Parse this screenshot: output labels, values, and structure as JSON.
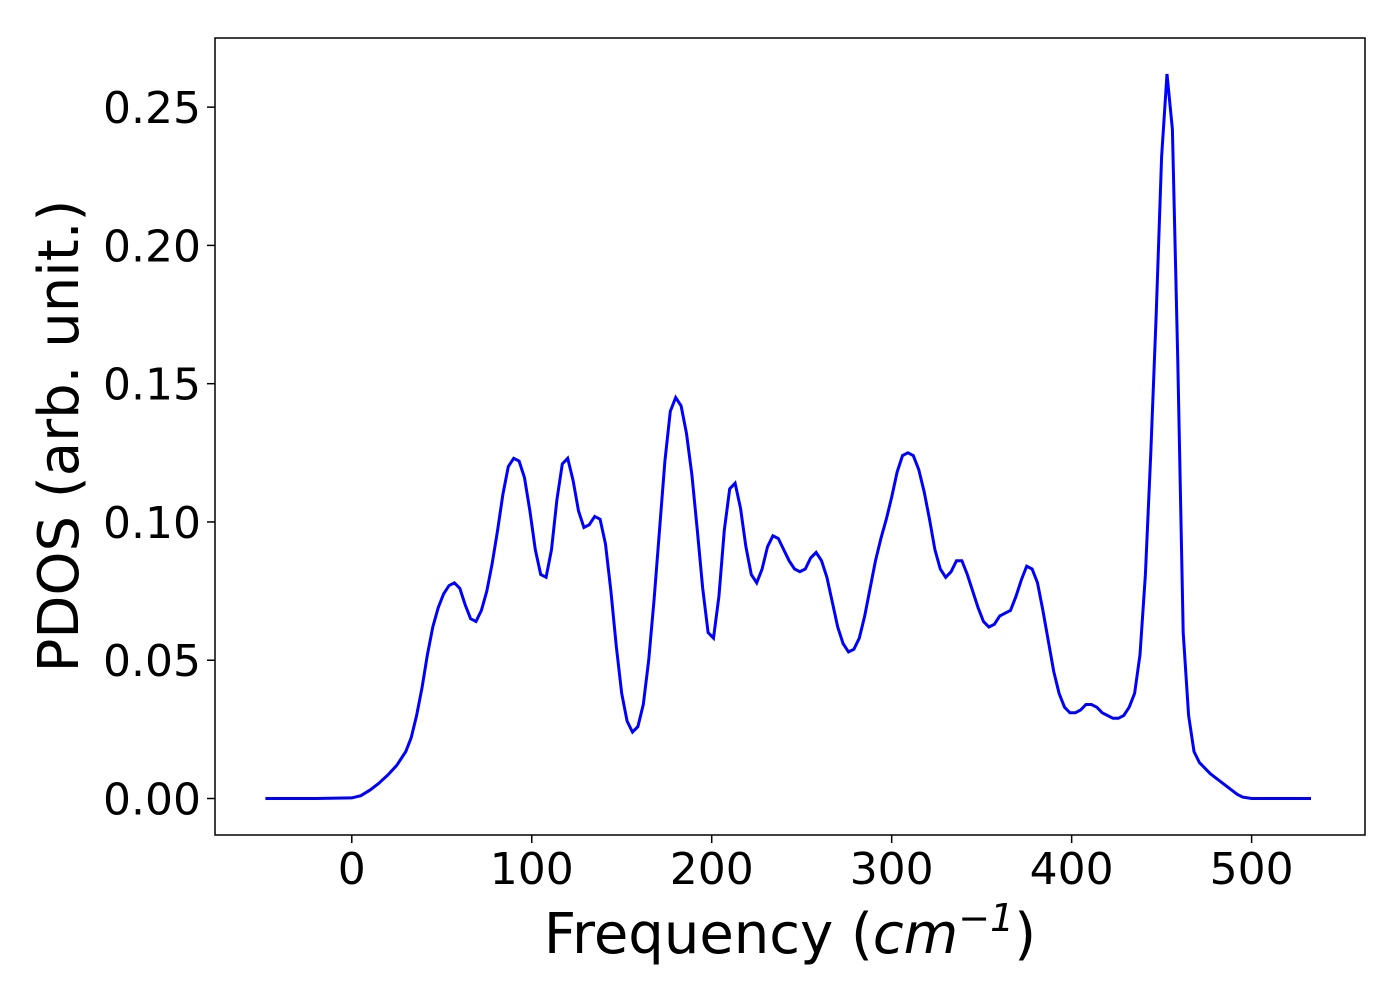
{
  "chart_data": {
    "type": "line",
    "xlabel": "Frequency (",
    "xlabel_unit": "cm",
    "xlabel_exp": "−1",
    "xlabel_close": ")",
    "ylabel": "PDOS (arb. unit.)",
    "xlim": [
      -76,
      563
    ],
    "ylim": [
      -0.0132,
      0.275
    ],
    "xticks": [
      0,
      100,
      200,
      300,
      400,
      500
    ],
    "xtick_labels": [
      "0",
      "100",
      "200",
      "300",
      "400",
      "500"
    ],
    "yticks": [
      0.0,
      0.05,
      0.1,
      0.15,
      0.2,
      0.25
    ],
    "ytick_labels": [
      "0.00",
      "0.05",
      "0.10",
      "0.15",
      "0.20",
      "0.25"
    ],
    "grid": false,
    "series": [
      {
        "color": "#0000ff",
        "x": [
          -48,
          -20,
          0,
          5,
          10,
          15,
          20,
          25,
          30,
          33,
          36,
          39,
          42,
          45,
          48,
          51,
          54,
          57,
          60,
          63,
          66,
          69,
          72,
          75,
          78,
          81,
          84,
          87,
          90,
          93,
          96,
          99,
          102,
          105,
          108,
          111,
          114,
          117,
          120,
          123,
          126,
          129,
          132,
          135,
          138,
          141,
          144,
          147,
          150,
          153,
          156,
          159,
          162,
          165,
          168,
          171,
          174,
          177,
          180,
          183,
          186,
          189,
          192,
          195,
          198,
          201,
          204,
          207,
          210,
          213,
          216,
          219,
          222,
          225,
          228,
          231,
          234,
          237,
          240,
          243,
          246,
          249,
          252,
          255,
          258,
          261,
          264,
          267,
          270,
          273,
          276,
          279,
          282,
          285,
          288,
          291,
          294,
          297,
          300,
          303,
          306,
          309,
          312,
          315,
          318,
          321,
          324,
          327,
          330,
          333,
          336,
          339,
          342,
          345,
          348,
          351,
          354,
          357,
          360,
          363,
          366,
          369,
          372,
          375,
          378,
          381,
          384,
          387,
          390,
          393,
          396,
          399,
          402,
          405,
          408,
          411,
          414,
          417,
          420,
          423,
          426,
          429,
          432,
          435,
          438,
          441,
          444,
          447,
          450,
          453,
          456,
          459,
          462,
          465,
          468,
          471,
          474,
          477,
          480,
          483,
          486,
          489,
          492,
          495,
          500,
          520,
          533
        ],
        "y": [
          0.0,
          0.0,
          0.0002,
          0.001,
          0.003,
          0.0055,
          0.0085,
          0.012,
          0.017,
          0.022,
          0.03,
          0.04,
          0.052,
          0.062,
          0.069,
          0.074,
          0.077,
          0.078,
          0.076,
          0.07,
          0.065,
          0.064,
          0.068,
          0.075,
          0.085,
          0.097,
          0.11,
          0.12,
          0.123,
          0.122,
          0.116,
          0.104,
          0.09,
          0.081,
          0.08,
          0.09,
          0.108,
          0.121,
          0.123,
          0.115,
          0.104,
          0.098,
          0.099,
          0.102,
          0.101,
          0.092,
          0.075,
          0.055,
          0.038,
          0.028,
          0.024,
          0.026,
          0.034,
          0.05,
          0.072,
          0.097,
          0.122,
          0.14,
          0.145,
          0.142,
          0.132,
          0.117,
          0.097,
          0.076,
          0.06,
          0.058,
          0.073,
          0.097,
          0.112,
          0.114,
          0.105,
          0.091,
          0.081,
          0.078,
          0.083,
          0.091,
          0.095,
          0.094,
          0.09,
          0.086,
          0.083,
          0.082,
          0.083,
          0.087,
          0.089,
          0.086,
          0.08,
          0.071,
          0.062,
          0.056,
          0.053,
          0.054,
          0.058,
          0.066,
          0.076,
          0.086,
          0.094,
          0.101,
          0.109,
          0.118,
          0.124,
          0.125,
          0.124,
          0.119,
          0.111,
          0.101,
          0.09,
          0.083,
          0.08,
          0.082,
          0.086,
          0.086,
          0.081,
          0.075,
          0.069,
          0.064,
          0.062,
          0.063,
          0.066,
          0.067,
          0.068,
          0.073,
          0.079,
          0.084,
          0.083,
          0.078,
          0.068,
          0.057,
          0.046,
          0.038,
          0.033,
          0.031,
          0.031,
          0.032,
          0.034,
          0.034,
          0.033,
          0.031,
          0.03,
          0.029,
          0.029,
          0.03,
          0.033,
          0.038,
          0.052,
          0.081,
          0.125,
          0.175,
          0.232,
          0.262,
          0.242,
          0.158,
          0.06,
          0.03,
          0.017,
          0.013,
          0.011,
          0.009,
          0.0075,
          0.006,
          0.0045,
          0.003,
          0.0015,
          0.0005,
          0.0,
          0.0,
          0.0
        ]
      }
    ]
  }
}
